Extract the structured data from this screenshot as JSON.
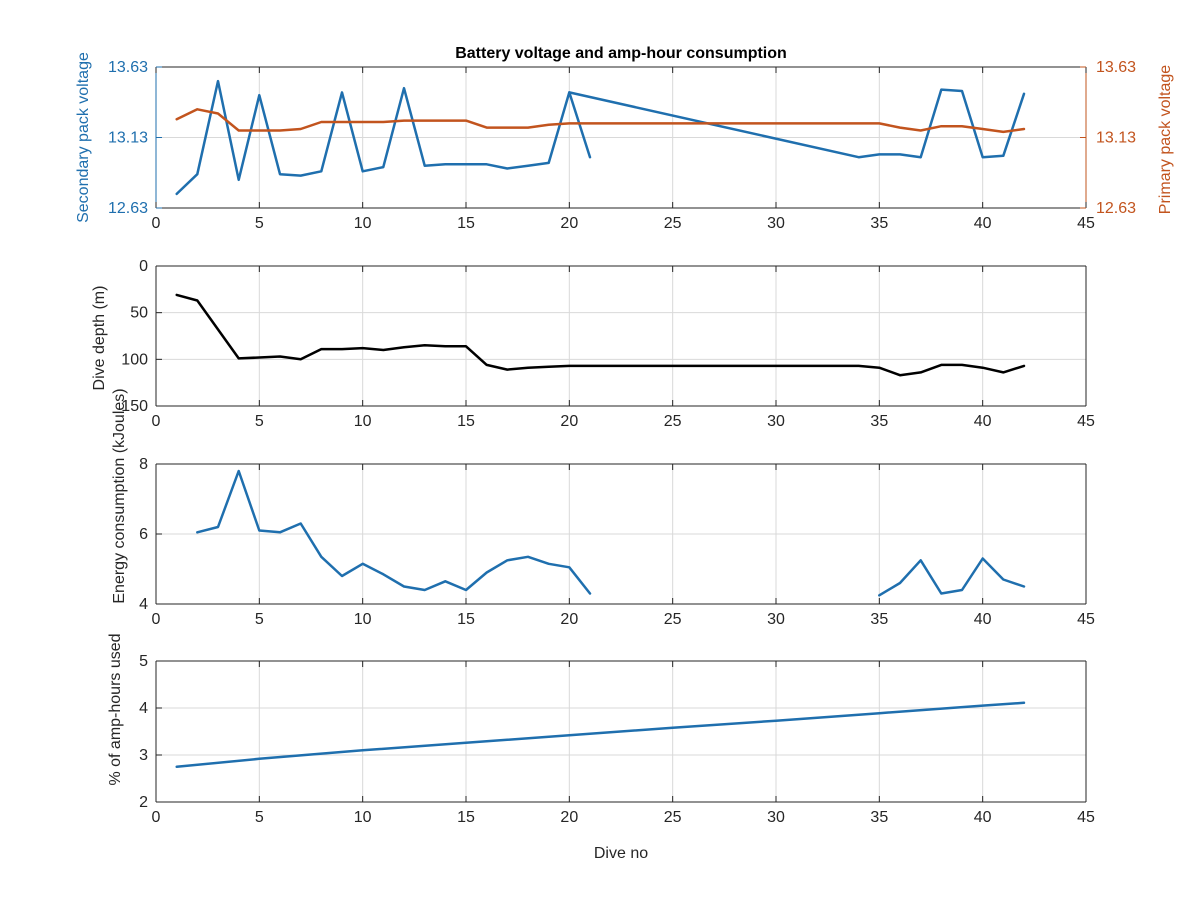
{
  "title": "Battery voltage and amp-hour consumption",
  "colors": {
    "blue": "#1f6fae",
    "orange": "#c2541e",
    "black": "#000000",
    "grid": "#d9d9d9",
    "axis": "#262626"
  },
  "chart_data": [
    {
      "type": "line",
      "title": "Battery voltage and amp-hour consumption",
      "xlabel": "",
      "ylabel": "Secondary pack voltage",
      "ylabel_right": "Primary pack voltage",
      "xlim": [
        0,
        45
      ],
      "ylim": [
        12.63,
        13.63
      ],
      "ylim_right": [
        12.63,
        13.63
      ],
      "xticks": [
        "0",
        "5",
        "10",
        "15",
        "20",
        "25",
        "30",
        "35",
        "40",
        "45"
      ],
      "yticks": [
        "12.63",
        "13.13",
        "13.63"
      ],
      "yticks_right": [
        "12.63",
        "13.13",
        "13.63"
      ],
      "grid": true,
      "series": [
        {
          "axis": "left",
          "color": "#1f6fae",
          "segments": [
            [
              [
                1,
                12.73
              ],
              [
                2,
                12.87
              ],
              [
                3,
                13.53
              ],
              [
                4,
                12.83
              ],
              [
                5,
                13.43
              ],
              [
                6,
                12.87
              ],
              [
                7,
                12.86
              ],
              [
                8,
                12.89
              ],
              [
                9,
                13.45
              ],
              [
                10,
                12.89
              ],
              [
                11,
                12.92
              ],
              [
                12,
                13.48
              ],
              [
                13,
                12.93
              ],
              [
                14,
                12.94
              ],
              [
                15,
                12.94
              ],
              [
                16,
                12.94
              ],
              [
                17,
                12.91
              ],
              [
                18,
                12.93
              ],
              [
                19,
                12.95
              ],
              [
                20,
                13.45
              ],
              [
                21,
                12.99
              ]
            ],
            [
              [
                20,
                13.45
              ],
              [
                34,
                12.99
              ],
              [
                35,
                13.01
              ],
              [
                36,
                13.01
              ],
              [
                37,
                12.99
              ],
              [
                38,
                13.47
              ],
              [
                39,
                13.46
              ],
              [
                40,
                12.99
              ],
              [
                41,
                13.0
              ],
              [
                42,
                13.44
              ]
            ]
          ]
        },
        {
          "axis": "right",
          "color": "#c2541e",
          "segments": [
            [
              [
                1,
                13.26
              ],
              [
                2,
                13.33
              ],
              [
                3,
                13.3
              ],
              [
                4,
                13.18
              ],
              [
                5,
                13.18
              ],
              [
                6,
                13.18
              ],
              [
                7,
                13.19
              ],
              [
                8,
                13.24
              ],
              [
                9,
                13.24
              ],
              [
                10,
                13.24
              ],
              [
                11,
                13.24
              ],
              [
                12,
                13.25
              ],
              [
                13,
                13.25
              ],
              [
                14,
                13.25
              ],
              [
                15,
                13.25
              ],
              [
                16,
                13.2
              ],
              [
                17,
                13.2
              ],
              [
                18,
                13.2
              ],
              [
                19,
                13.22
              ],
              [
                20,
                13.23
              ],
              [
                21,
                13.23
              ],
              [
                34,
                13.23
              ],
              [
                35,
                13.23
              ],
              [
                36,
                13.2
              ],
              [
                37,
                13.18
              ],
              [
                38,
                13.21
              ],
              [
                39,
                13.21
              ],
              [
                40,
                13.19
              ],
              [
                41,
                13.17
              ],
              [
                42,
                13.19
              ]
            ]
          ]
        }
      ]
    },
    {
      "type": "line",
      "xlabel": "",
      "ylabel": "Dive depth (m)",
      "xlim": [
        0,
        45
      ],
      "ylim": [
        0,
        150
      ],
      "y_reversed": true,
      "xticks": [
        "0",
        "5",
        "10",
        "15",
        "20",
        "25",
        "30",
        "35",
        "40",
        "45"
      ],
      "yticks": [
        "0",
        "50",
        "100",
        "150"
      ],
      "grid": true,
      "series": [
        {
          "color": "#000000",
          "segments": [
            [
              [
                1,
                31
              ],
              [
                2,
                37
              ],
              [
                4,
                99
              ],
              [
                5,
                98
              ],
              [
                6,
                97
              ],
              [
                7,
                100
              ],
              [
                8,
                89
              ],
              [
                9,
                89
              ],
              [
                10,
                88
              ],
              [
                11,
                90
              ],
              [
                12,
                87
              ],
              [
                13,
                85
              ],
              [
                14,
                86
              ],
              [
                15,
                86
              ],
              [
                16,
                106
              ],
              [
                17,
                111
              ],
              [
                18,
                109
              ],
              [
                19,
                108
              ],
              [
                20,
                107
              ],
              [
                34,
                107
              ],
              [
                35,
                109
              ],
              [
                36,
                117
              ],
              [
                37,
                114
              ],
              [
                38,
                106
              ],
              [
                39,
                106
              ],
              [
                40,
                109
              ],
              [
                41,
                114
              ],
              [
                42,
                107
              ]
            ]
          ]
        }
      ]
    },
    {
      "type": "line",
      "xlabel": "",
      "ylabel": "Energy consumption (kJoules)",
      "xlim": [
        0,
        45
      ],
      "ylim": [
        4,
        8
      ],
      "xticks": [
        "0",
        "5",
        "10",
        "15",
        "20",
        "25",
        "30",
        "35",
        "40",
        "45"
      ],
      "yticks": [
        "4",
        "6",
        "8"
      ],
      "grid": true,
      "series": [
        {
          "color": "#1f6fae",
          "segments": [
            [
              [
                2,
                6.05
              ],
              [
                3,
                6.2
              ],
              [
                4,
                7.8
              ],
              [
                5,
                6.1
              ],
              [
                6,
                6.05
              ],
              [
                7,
                6.3
              ],
              [
                8,
                5.35
              ],
              [
                9,
                4.8
              ],
              [
                10,
                5.15
              ],
              [
                11,
                4.85
              ],
              [
                12,
                4.5
              ],
              [
                13,
                4.4
              ],
              [
                14,
                4.65
              ],
              [
                15,
                4.4
              ],
              [
                16,
                4.9
              ],
              [
                17,
                5.25
              ],
              [
                18,
                5.35
              ],
              [
                19,
                5.15
              ],
              [
                20,
                5.05
              ],
              [
                21,
                4.3
              ]
            ],
            [
              [
                35,
                4.25
              ],
              [
                36,
                4.6
              ],
              [
                37,
                5.25
              ],
              [
                38,
                4.3
              ],
              [
                39,
                4.4
              ],
              [
                40,
                5.3
              ],
              [
                41,
                4.7
              ],
              [
                42,
                4.5
              ]
            ]
          ]
        }
      ]
    },
    {
      "type": "line",
      "xlabel": "Dive no",
      "ylabel": "% of amp-hours used",
      "xlim": [
        0,
        45
      ],
      "ylim": [
        2,
        5
      ],
      "xticks": [
        "0",
        "5",
        "10",
        "15",
        "20",
        "25",
        "30",
        "35",
        "40",
        "45"
      ],
      "yticks": [
        "2",
        "3",
        "4",
        "5"
      ],
      "grid": true,
      "series": [
        {
          "color": "#1f6fae",
          "segments": [
            [
              [
                1,
                2.75
              ],
              [
                5,
                2.92
              ],
              [
                10,
                3.1
              ],
              [
                15,
                3.26
              ],
              [
                20,
                3.42
              ],
              [
                25,
                3.58
              ],
              [
                30,
                3.73
              ],
              [
                35,
                3.89
              ],
              [
                40,
                4.05
              ],
              [
                42,
                4.11
              ]
            ]
          ]
        }
      ]
    }
  ]
}
